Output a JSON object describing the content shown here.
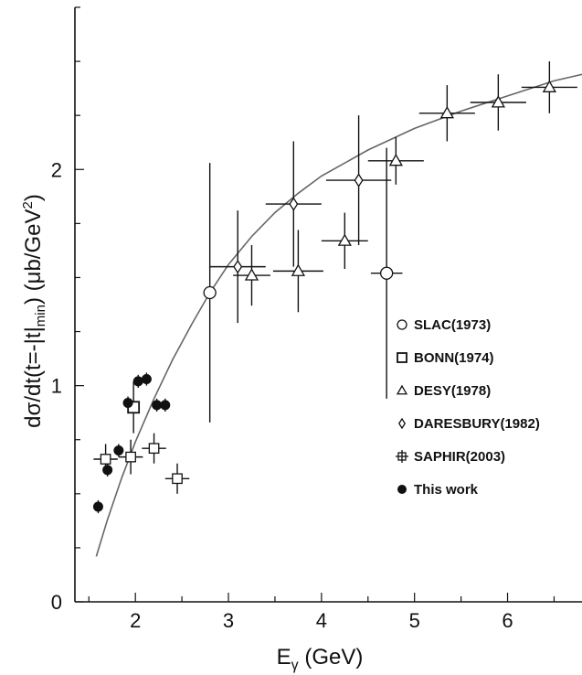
{
  "chart_data": {
    "type": "scatter",
    "title": "",
    "xlabel": "Eγ (GeV)",
    "xlabel_main": "E",
    "xlabel_sub": "γ",
    "xlabel_unit": " (GeV)",
    "ylabel": "dσ/dt(t=-|t|min) (μb/GeV2)",
    "ylabel_parts": {
      "a": "dσ/dt(t=-|t|",
      "b": "min",
      "c": ") (μb/GeV",
      "d": "2",
      "e": ")"
    },
    "xlim": [
      1.35,
      6.8
    ],
    "ylim": [
      0,
      2.75
    ],
    "x_ticks": [
      2,
      3,
      4,
      5,
      6
    ],
    "y_ticks": [
      0,
      1,
      2
    ],
    "grid": false,
    "legend_position": "middle-right",
    "series": [
      {
        "name": "SLAC(1973)",
        "marker": "circle",
        "points": [
          {
            "x": 2.8,
            "y": 1.43,
            "xerr": 0,
            "yerr": 0.6
          },
          {
            "x": 4.7,
            "y": 1.52,
            "xerr": 0.17,
            "yerr": 0.58
          }
        ]
      },
      {
        "name": "BONN(1974)",
        "marker": "square",
        "points": [
          {
            "x": 1.98,
            "y": 0.9,
            "xerr": 0,
            "yerr": 0.12
          }
        ]
      },
      {
        "name": "DESY(1978)",
        "marker": "triangle",
        "points": [
          {
            "x": 3.25,
            "y": 1.51,
            "xerr": 0.2,
            "yerr": 0.14
          },
          {
            "x": 3.75,
            "y": 1.53,
            "xerr": 0.27,
            "yerr": 0.19
          },
          {
            "x": 4.25,
            "y": 1.67,
            "xerr": 0.25,
            "yerr": 0.13
          },
          {
            "x": 4.8,
            "y": 2.04,
            "xerr": 0.3,
            "yerr": 0.11
          },
          {
            "x": 5.35,
            "y": 2.26,
            "xerr": 0.3,
            "yerr": 0.13
          },
          {
            "x": 5.9,
            "y": 2.31,
            "xerr": 0.3,
            "yerr": 0.13
          },
          {
            "x": 6.45,
            "y": 2.38,
            "xerr": 0.3,
            "yerr": 0.12
          }
        ]
      },
      {
        "name": "DARESBURY(1982)",
        "marker": "diamond",
        "points": [
          {
            "x": 3.1,
            "y": 1.55,
            "xerr": 0.3,
            "yerr": 0.26
          },
          {
            "x": 3.7,
            "y": 1.84,
            "xerr": 0.3,
            "yerr": 0.29
          },
          {
            "x": 4.4,
            "y": 1.95,
            "xerr": 0.35,
            "yerr": 0.3
          }
        ]
      },
      {
        "name": "SAPHIR(2003)",
        "marker": "cross-square",
        "points": [
          {
            "x": 1.68,
            "y": 0.66,
            "xerr": 0.13,
            "yerr": 0.07
          },
          {
            "x": 1.95,
            "y": 0.67,
            "xerr": 0.13,
            "yerr": 0.08
          },
          {
            "x": 2.2,
            "y": 0.71,
            "xerr": 0.13,
            "yerr": 0.07
          },
          {
            "x": 2.45,
            "y": 0.57,
            "xerr": 0.13,
            "yerr": 0.07
          }
        ]
      },
      {
        "name": "This work",
        "marker": "filled-circle",
        "points": [
          {
            "x": 1.6,
            "y": 0.44,
            "xerr": 0,
            "yerr": 0.03
          },
          {
            "x": 1.7,
            "y": 0.61,
            "xerr": 0,
            "yerr": 0.03
          },
          {
            "x": 1.82,
            "y": 0.7,
            "xerr": 0,
            "yerr": 0.03
          },
          {
            "x": 1.92,
            "y": 0.92,
            "xerr": 0,
            "yerr": 0.03
          },
          {
            "x": 2.03,
            "y": 1.02,
            "xerr": 0,
            "yerr": 0.03
          },
          {
            "x": 2.12,
            "y": 1.03,
            "xerr": 0,
            "yerr": 0.03
          },
          {
            "x": 2.23,
            "y": 0.91,
            "xerr": 0,
            "yerr": 0.03
          },
          {
            "x": 2.32,
            "y": 0.91,
            "xerr": 0,
            "yerr": 0.03
          }
        ]
      }
    ],
    "curve": {
      "x": [
        1.58,
        1.7,
        1.85,
        2.0,
        2.2,
        2.4,
        2.6,
        2.8,
        3.0,
        3.25,
        3.5,
        3.75,
        4.0,
        4.5,
        5.0,
        5.5,
        6.0,
        6.5,
        6.8
      ],
      "y": [
        0.21,
        0.38,
        0.57,
        0.74,
        0.94,
        1.12,
        1.28,
        1.43,
        1.56,
        1.69,
        1.8,
        1.89,
        1.97,
        2.09,
        2.19,
        2.27,
        2.34,
        2.41,
        2.44
      ]
    }
  }
}
